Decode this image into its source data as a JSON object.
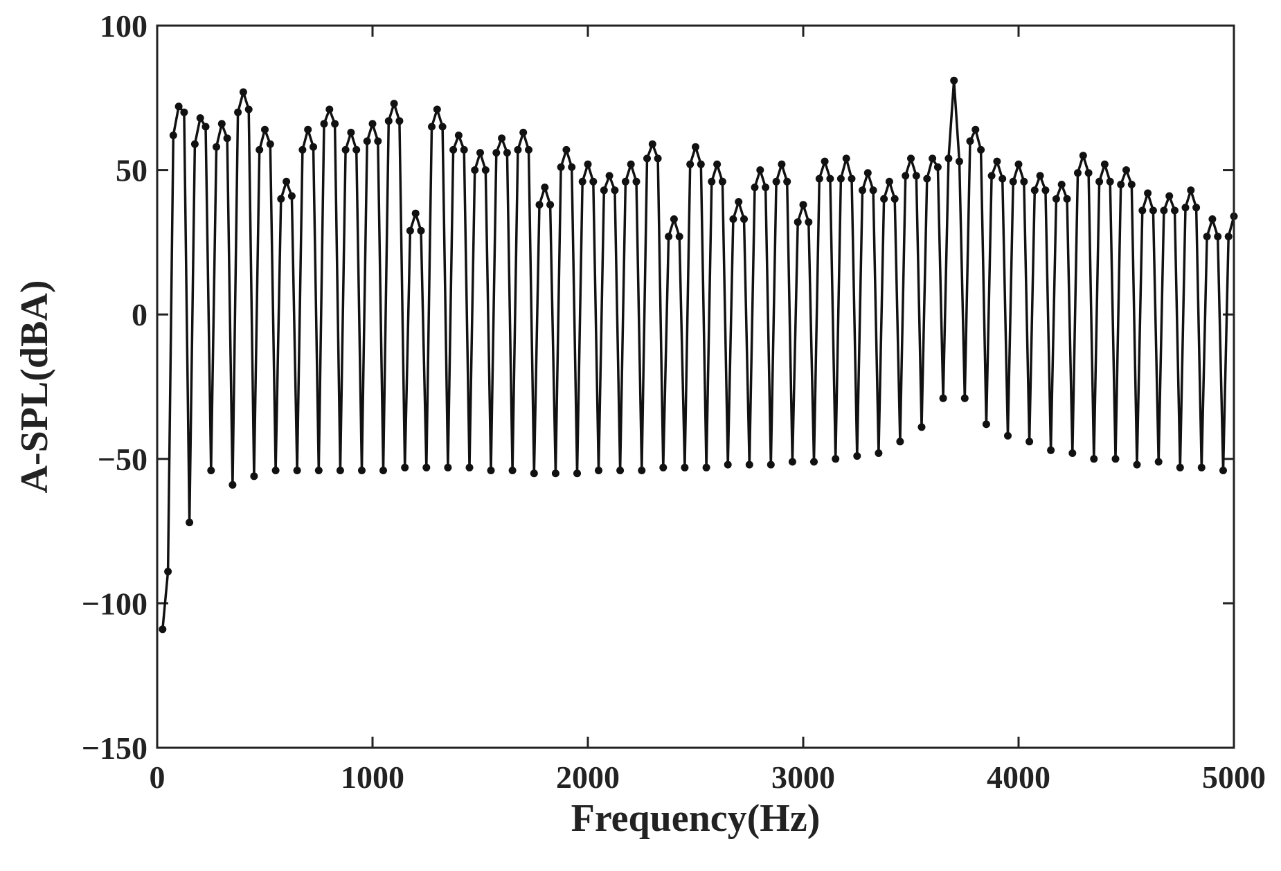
{
  "chart_data": {
    "type": "line",
    "title": "",
    "xlabel": "Frequency(Hz)",
    "ylabel": "A-SPL(dBA)",
    "xlim": [
      0,
      5000
    ],
    "ylim": [
      -150,
      100
    ],
    "xticks": [
      0,
      1000,
      2000,
      3000,
      4000,
      5000
    ],
    "xtick_labels": [
      "0",
      "1000",
      "2000",
      "3000",
      "4000",
      "5000"
    ],
    "yticks": [
      -150,
      -100,
      -50,
      0,
      50,
      100
    ],
    "ytick_labels": [
      "−150",
      "−100",
      "−50",
      "0",
      "50",
      "100"
    ],
    "grid": false,
    "line_color": "#111111",
    "marker": "circle",
    "series": [
      {
        "x": [
          25,
          50,
          75,
          100,
          125,
          150,
          175,
          200,
          225,
          250,
          275,
          300,
          325,
          350,
          375,
          400,
          425,
          450,
          475,
          500,
          525,
          550,
          575,
          600,
          625,
          650,
          675,
          700,
          725,
          750,
          775,
          800,
          825,
          850,
          875,
          900,
          925,
          950,
          975,
          1000,
          1025,
          1050,
          1075,
          1100,
          1125,
          1150,
          1175,
          1200,
          1225,
          1250,
          1275,
          1300,
          1325,
          1350,
          1375,
          1400,
          1425,
          1450,
          1475,
          1500,
          1525,
          1550,
          1575,
          1600,
          1625,
          1650,
          1675,
          1700,
          1725,
          1750,
          1775,
          1800,
          1825,
          1850,
          1875,
          1900,
          1925,
          1950,
          1975,
          2000,
          2025,
          2050,
          2075,
          2100,
          2125,
          2150,
          2175,
          2200,
          2225,
          2250,
          2275,
          2300,
          2325,
          2350,
          2375,
          2400,
          2425,
          2450,
          2475,
          2500,
          2525,
          2550,
          2575,
          2600,
          2625,
          2650,
          2675,
          2700,
          2725,
          2750,
          2775,
          2800,
          2825,
          2850,
          2875,
          2900,
          2925,
          2950,
          2975,
          3000,
          3025,
          3050,
          3075,
          3100,
          3125,
          3150,
          3175,
          3200,
          3225,
          3250,
          3275,
          3300,
          3325,
          3350,
          3375,
          3400,
          3425,
          3450,
          3475,
          3500,
          3525,
          3550,
          3575,
          3600,
          3625,
          3650,
          3675,
          3700,
          3725,
          3750,
          3775,
          3800,
          3825,
          3850,
          3875,
          3900,
          3925,
          3950,
          3975,
          4000,
          4025,
          4050,
          4075,
          4100,
          4125,
          4150,
          4175,
          4200,
          4225,
          4250,
          4275,
          4300,
          4325,
          4350,
          4375,
          4400,
          4425,
          4450,
          4475,
          4500,
          4525,
          4550,
          4575,
          4600,
          4625,
          4650,
          4675,
          4700,
          4725,
          4750,
          4775,
          4800,
          4825,
          4850,
          4875,
          4900,
          4925,
          4950,
          4975,
          5000
        ],
        "y": [
          -109,
          -89,
          62,
          72,
          70,
          -72,
          59,
          68,
          65,
          -54,
          58,
          66,
          61,
          -59,
          70,
          77,
          71,
          -56,
          57,
          64,
          59,
          -54,
          40,
          46,
          41,
          -54,
          57,
          64,
          58,
          -54,
          66,
          71,
          66,
          -54,
          57,
          63,
          57,
          -54,
          60,
          66,
          60,
          -54,
          67,
          73,
          67,
          -53,
          29,
          35,
          29,
          -53,
          65,
          71,
          65,
          -53,
          57,
          62,
          57,
          -53,
          50,
          56,
          50,
          -54,
          56,
          61,
          56,
          -54,
          57,
          63,
          57,
          -55,
          38,
          44,
          38,
          -55,
          51,
          57,
          51,
          -55,
          46,
          52,
          46,
          -54,
          43,
          48,
          43,
          -54,
          46,
          52,
          46,
          -54,
          54,
          59,
          54,
          -53,
          27,
          33,
          27,
          -53,
          52,
          58,
          52,
          -53,
          46,
          52,
          46,
          -52,
          33,
          39,
          33,
          -52,
          44,
          50,
          44,
          -52,
          46,
          52,
          46,
          -51,
          32,
          38,
          32,
          -51,
          47,
          53,
          47,
          -50,
          47,
          54,
          47,
          -49,
          43,
          49,
          43,
          -48,
          40,
          46,
          40,
          -44,
          48,
          54,
          48,
          -39,
          47,
          54,
          51,
          -29,
          54,
          81,
          53,
          -29,
          60,
          64,
          57,
          -38,
          48,
          53,
          47,
          -42,
          46,
          52,
          46,
          -44,
          43,
          48,
          43,
          -47,
          40,
          45,
          40,
          -48,
          49,
          55,
          49,
          -50,
          46,
          52,
          46,
          -50,
          45,
          50,
          45,
          -52,
          36,
          42,
          36,
          -51,
          36,
          41,
          36,
          -53,
          37,
          43,
          37,
          -53,
          27,
          33,
          27,
          -54,
          27,
          34
        ]
      }
    ]
  }
}
